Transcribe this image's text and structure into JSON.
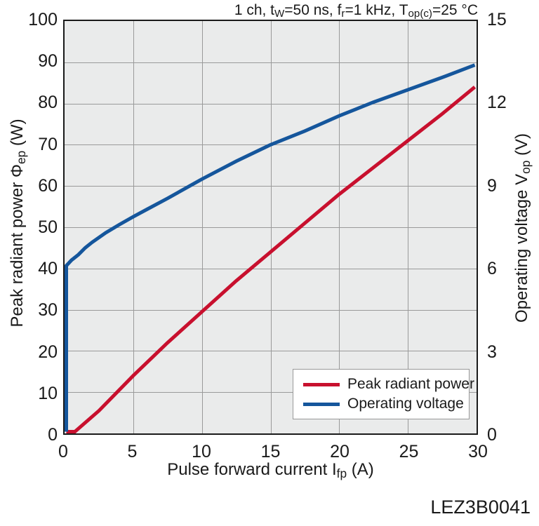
{
  "header": {
    "title": "1 ch, t_{W}=50 ns, f_{r}=1 kHz, T_{op(c)}=25 °C"
  },
  "footer": {
    "code": "LEZ3B0041"
  },
  "chart_data": {
    "type": "line",
    "title": "1 ch, tW=50 ns, fr=1 kHz, Top(c)=25 °C",
    "xlabel": "Pulse forward current I_{fp} (A)",
    "ylabel_left": "Peak radiant power Φ_{ep} (W)",
    "ylabel_right": "Operating voltage V_{op} (V)",
    "xlim": [
      0,
      30
    ],
    "xticks": [
      0,
      5,
      10,
      15,
      20,
      25,
      30
    ],
    "ylim_left": [
      0,
      100
    ],
    "yticks_left": [
      0,
      10,
      20,
      30,
      40,
      50,
      60,
      70,
      80,
      90,
      100
    ],
    "ylim_right": [
      0,
      15
    ],
    "yticks_right": [
      0,
      3,
      6,
      9,
      12,
      15
    ],
    "grid": true,
    "plot_bg": "#eaebeb",
    "grid_color": "#9a9a9a",
    "frame_color": "#1a1a1a",
    "legend": {
      "position": "lower-right",
      "entries": [
        "Peak radiant power",
        "Operating voltage"
      ]
    },
    "series": [
      {
        "name": "Peak radiant power",
        "axis": "left",
        "unit": "W",
        "color": "#c8102e",
        "x": [
          0,
          0.75,
          2.5,
          5,
          7.5,
          10,
          12.5,
          15,
          17.5,
          20,
          22.5,
          25,
          27.5,
          30
        ],
        "y": [
          0,
          0,
          5.5,
          14,
          22,
          29.5,
          37,
          44,
          51,
          58,
          64.5,
          71,
          77.5,
          84
        ]
      },
      {
        "name": "Operating voltage",
        "axis": "right",
        "unit": "V",
        "color": "#15569c",
        "x": [
          0.12,
          0.12,
          0.5,
          1,
          1.5,
          2,
          3,
          4,
          5,
          6,
          7.5,
          10,
          12.5,
          15,
          17.5,
          20,
          22.5,
          25,
          27.5,
          30
        ],
        "y": [
          0,
          6.1,
          6.3,
          6.5,
          6.75,
          6.95,
          7.3,
          7.6,
          7.88,
          8.15,
          8.55,
          9.25,
          9.9,
          10.5,
          11.0,
          11.55,
          12.05,
          12.5,
          12.95,
          13.4
        ]
      }
    ]
  }
}
